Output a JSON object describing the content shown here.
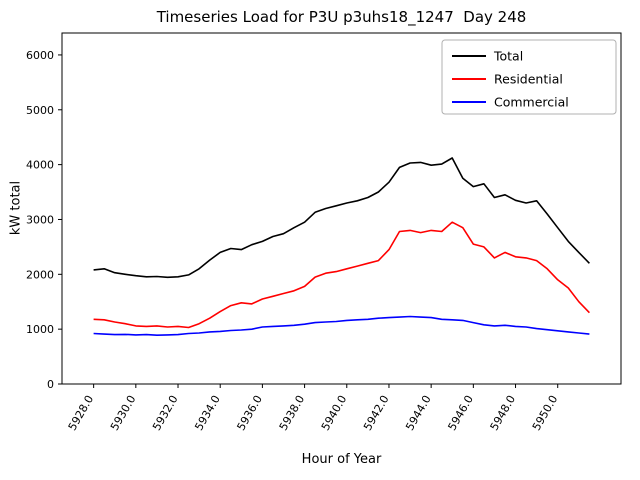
{
  "chart_data": {
    "type": "line",
    "title": "Timeseries Load for P3U p3uhs18_1247  Day 248",
    "xlabel": "Hour of Year",
    "ylabel": "kW total",
    "xlim": [
      5926.5,
      5953.0
    ],
    "ylim": [
      0,
      6400
    ],
    "grid": false,
    "legend_position": "upper right",
    "xticks": [
      5928,
      5930,
      5932,
      5934,
      5936,
      5938,
      5940,
      5942,
      5944,
      5946,
      5948,
      5950
    ],
    "xtick_labels": [
      "5928.0",
      "5930.0",
      "5932.0",
      "5934.0",
      "5936.0",
      "5938.0",
      "5940.0",
      "5942.0",
      "5944.0",
      "5946.0",
      "5948.0",
      "5950.0"
    ],
    "yticks": [
      0,
      1000,
      2000,
      3000,
      4000,
      5000,
      6000
    ],
    "x": [
      5928.0,
      5928.5,
      5929.0,
      5929.5,
      5930.0,
      5930.5,
      5931.0,
      5931.5,
      5932.0,
      5932.5,
      5933.0,
      5933.5,
      5934.0,
      5934.5,
      5935.0,
      5935.5,
      5936.0,
      5936.5,
      5937.0,
      5937.5,
      5938.0,
      5938.5,
      5939.0,
      5939.5,
      5940.0,
      5940.5,
      5941.0,
      5941.5,
      5942.0,
      5942.5,
      5943.0,
      5943.5,
      5944.0,
      5944.5,
      5945.0,
      5945.5,
      5946.0,
      5946.5,
      5947.0,
      5947.5,
      5948.0,
      5948.5,
      5949.0,
      5949.5,
      5950.0,
      5950.5,
      5951.0,
      5951.5
    ],
    "series": [
      {
        "name": "Total",
        "color": "#000000",
        "values": [
          2080,
          2100,
          2030,
          2000,
          1975,
          1955,
          1960,
          1945,
          1955,
          1990,
          2100,
          2260,
          2400,
          2470,
          2450,
          2540,
          2600,
          2690,
          2740,
          2850,
          2950,
          3130,
          3200,
          3250,
          3300,
          3340,
          3400,
          3500,
          3680,
          3950,
          4030,
          4040,
          3990,
          4010,
          4120,
          3750,
          3600,
          3650,
          3400,
          3450,
          3350,
          3300,
          3340,
          3100,
          2850,
          2600,
          2400,
          2200
        ]
      },
      {
        "name": "Residential",
        "color": "#ff0000",
        "values": [
          1180,
          1170,
          1130,
          1100,
          1060,
          1050,
          1060,
          1040,
          1050,
          1030,
          1100,
          1200,
          1320,
          1430,
          1480,
          1460,
          1550,
          1600,
          1650,
          1700,
          1780,
          1950,
          2020,
          2050,
          2100,
          2150,
          2200,
          2250,
          2450,
          2780,
          2800,
          2760,
          2800,
          2780,
          2950,
          2850,
          2550,
          2500,
          2300,
          2400,
          2320,
          2300,
          2250,
          2100,
          1900,
          1750,
          1500,
          1300
        ]
      },
      {
        "name": "Commercial",
        "color": "#0000ff",
        "values": [
          920,
          910,
          900,
          905,
          895,
          900,
          890,
          895,
          900,
          920,
          930,
          950,
          960,
          975,
          985,
          1000,
          1040,
          1050,
          1060,
          1070,
          1090,
          1120,
          1130,
          1140,
          1160,
          1170,
          1180,
          1200,
          1210,
          1220,
          1230,
          1220,
          1210,
          1180,
          1170,
          1160,
          1120,
          1080,
          1060,
          1070,
          1050,
          1040,
          1010,
          990,
          970,
          950,
          930,
          910
        ]
      }
    ]
  }
}
